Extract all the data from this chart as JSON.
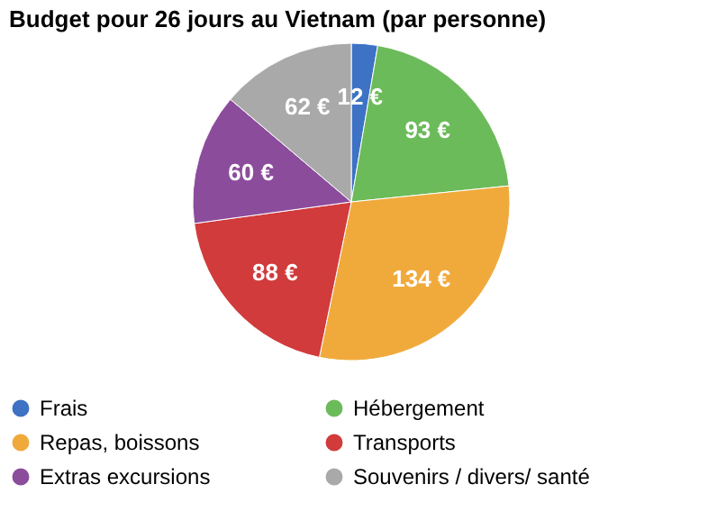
{
  "chart_data": {
    "type": "pie",
    "title": "Budget pour 26 jours au Vietnam (par personne)",
    "categories": [
      "Frais",
      "Hébergement",
      "Repas, boissons",
      "Transports",
      "Extras excursions",
      "Souvenirs / divers/ santé"
    ],
    "values": [
      12,
      93,
      134,
      88,
      60,
      62
    ],
    "value_labels": [
      "12 €",
      "93 €",
      "134 €",
      "88 €",
      "60 €",
      "62 €"
    ],
    "colors": [
      "#3d72c4",
      "#6cbb5a",
      "#f0aa3c",
      "#d13b3b",
      "#8c4c9c",
      "#a9a9a9"
    ],
    "legend": "bottom"
  }
}
